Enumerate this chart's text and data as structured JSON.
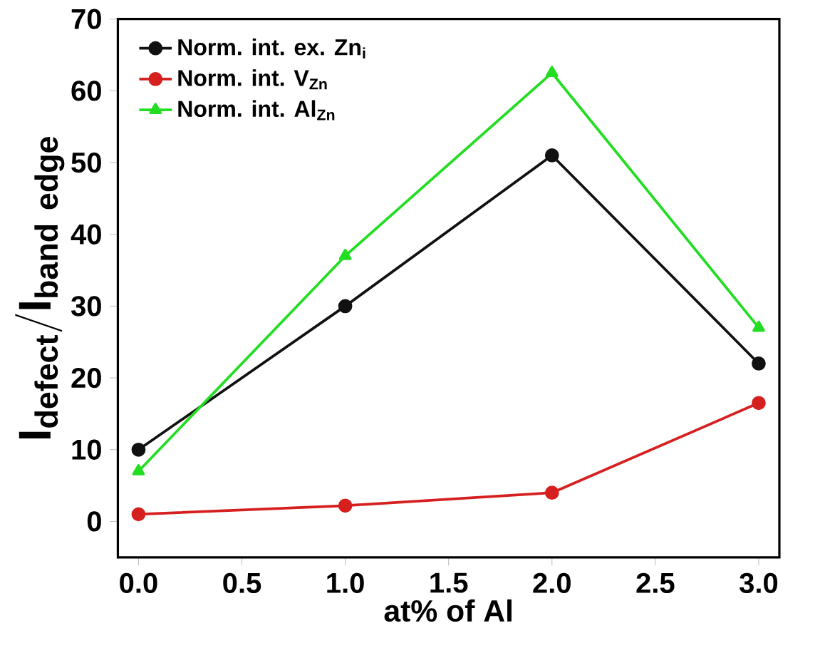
{
  "chart_data": {
    "type": "line",
    "xlabel": "at% of Al",
    "ylabel": "\\mathbf{I_{defect}/I_{band\\ edge}}",
    "x": [
      0,
      1,
      2,
      3
    ],
    "series": [
      {
        "name": "Norm. int. ex. Zn$_{i}$",
        "color": "#111111",
        "marker": "circle",
        "values": [
          10,
          30,
          51,
          22
        ]
      },
      {
        "name": "Norm. int. V$_{Zn}$",
        "color": "#d62020",
        "marker": "circle",
        "values": [
          1,
          2.2,
          4,
          16.5
        ]
      },
      {
        "name": "Norm. int. Al$_{Zn}$",
        "color": "#22dd22",
        "marker": "triangle",
        "values": [
          7,
          37,
          62.5,
          27
        ]
      }
    ],
    "xlim": [
      -0.1,
      3.1
    ],
    "ylim": [
      -5,
      70
    ],
    "xticks": [
      {
        "value": 0,
        "label": "0.0"
      },
      {
        "value": 0.5,
        "label": "0.5"
      },
      {
        "value": 1,
        "label": "1.0"
      },
      {
        "value": 1.5,
        "label": "1.5"
      },
      {
        "value": 2,
        "label": "2.0"
      },
      {
        "value": 2.5,
        "label": "2.5"
      },
      {
        "value": 3,
        "label": "3.0"
      }
    ],
    "yticks": [
      0,
      10,
      20,
      30,
      40,
      50,
      60,
      70
    ],
    "legend": "top left",
    "grid": false
  }
}
